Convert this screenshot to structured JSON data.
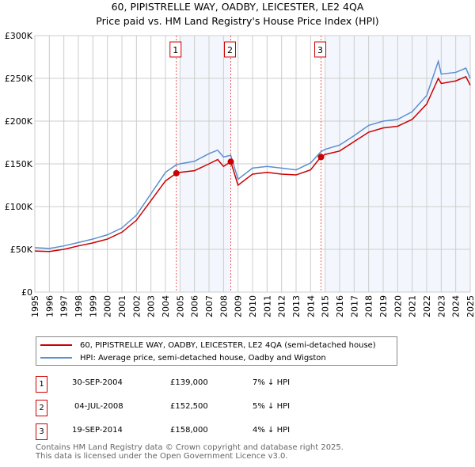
{
  "chart_data": {
    "type": "line",
    "title": "60, PIPISTRELLE WAY, OADBY, LEICESTER, LE2 4QA",
    "subtitle": "Price paid vs. HM Land Registry's House Price Index (HPI)",
    "xlim": [
      1995,
      2025
    ],
    "ylim": [
      0,
      300000
    ],
    "x_ticks": [
      "1995",
      "1996",
      "1997",
      "1998",
      "1999",
      "2000",
      "2001",
      "2002",
      "2003",
      "2004",
      "2005",
      "2006",
      "2007",
      "2008",
      "2009",
      "2010",
      "2011",
      "2012",
      "2013",
      "2014",
      "2015",
      "2016",
      "2017",
      "2018",
      "2019",
      "2020",
      "2021",
      "2022",
      "2023",
      "2024",
      "2025"
    ],
    "y_ticks": [
      {
        "v": 0,
        "label": "£0"
      },
      {
        "v": 50000,
        "label": "£50K"
      },
      {
        "v": 100000,
        "label": "£100K"
      },
      {
        "v": 150000,
        "label": "£150K"
      },
      {
        "v": 200000,
        "label": "£200K"
      },
      {
        "v": 250000,
        "label": "£250K"
      },
      {
        "v": 300000,
        "label": "£300K"
      }
    ],
    "shaded_ranges": [
      [
        2005,
        2008.5
      ],
      [
        2015,
        2025
      ]
    ],
    "series": [
      {
        "name": "60, PIPISTRELLE WAY, OADBY, LEICESTER, LE2 4QA (semi-detached house)",
        "color": "#cc0000",
        "x": [
          1995,
          1996,
          1997,
          1998,
          1999,
          2000,
          2001,
          2002,
          2003,
          2004,
          2004.75,
          2005,
          2006,
          2007,
          2007.6,
          2008,
          2008.5,
          2009,
          2010,
          2011,
          2012,
          2013,
          2014,
          2014.7,
          2015,
          2016,
          2017,
          2018,
          2019,
          2020,
          2021,
          2022,
          2022.8,
          2023,
          2024,
          2024.7,
          2025
        ],
        "y": [
          48000,
          47500,
          50000,
          54000,
          57500,
          62000,
          70000,
          84000,
          107000,
          130000,
          139000,
          140000,
          142000,
          150000,
          155000,
          147000,
          152500,
          125000,
          138000,
          140000,
          138000,
          137000,
          143000,
          158000,
          161000,
          165000,
          176000,
          187000,
          192000,
          194000,
          202000,
          220000,
          250000,
          244000,
          247000,
          252000,
          242000
        ]
      },
      {
        "name": "HPI: Average price, semi-detached house, Oadby and Wigston",
        "color": "#5b8fd0",
        "x": [
          1995,
          1996,
          1997,
          1998,
          1999,
          2000,
          2001,
          2002,
          2003,
          2004,
          2004.75,
          2005,
          2006,
          2007,
          2007.6,
          2008,
          2008.5,
          2009,
          2010,
          2011,
          2012,
          2013,
          2014,
          2014.7,
          2015,
          2016,
          2017,
          2018,
          2019,
          2020,
          2021,
          2022,
          2022.8,
          2023,
          2024,
          2024.7,
          2025
        ],
        "y": [
          52000,
          51000,
          54000,
          58000,
          62000,
          67000,
          75000,
          90000,
          115000,
          140000,
          149000,
          150000,
          153000,
          162000,
          166000,
          158000,
          160000,
          132000,
          145000,
          147000,
          145000,
          143000,
          151000,
          164000,
          167000,
          172000,
          183000,
          195000,
          200000,
          202000,
          211000,
          230000,
          270000,
          255000,
          257000,
          262000,
          250000
        ]
      }
    ],
    "sales": [
      {
        "label": "1",
        "x": 2004.75,
        "y": 139000
      },
      {
        "label": "2",
        "x": 2008.5,
        "y": 152500
      },
      {
        "label": "3",
        "x": 2014.72,
        "y": 158000
      }
    ]
  },
  "legend": {
    "property": "60, PIPISTRELLE WAY, OADBY, LEICESTER, LE2 4QA (semi-detached house)",
    "hpi": "HPI: Average price, semi-detached house, Oadby and Wigston"
  },
  "transactions": [
    {
      "n": "1",
      "date": "30-SEP-2004",
      "price": "£139,000",
      "diff": "7% ↓ HPI"
    },
    {
      "n": "2",
      "date": "04-JUL-2008",
      "price": "£152,500",
      "diff": "5% ↓ HPI"
    },
    {
      "n": "3",
      "date": "19-SEP-2014",
      "price": "£158,000",
      "diff": "4% ↓ HPI"
    }
  ],
  "footer": {
    "line1": "Contains HM Land Registry data © Crown copyright and database right 2025.",
    "line2": "This data is licensed under the Open Government Licence v3.0."
  }
}
